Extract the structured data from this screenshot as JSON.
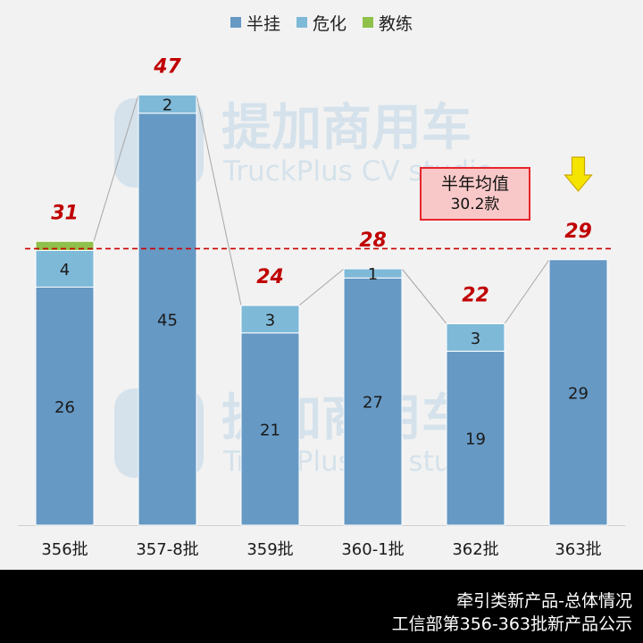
{
  "chart_data": {
    "type": "bar",
    "stacked": true,
    "categories": [
      "356批",
      "357-8批",
      "359批",
      "360-1批",
      "362批",
      "363批"
    ],
    "series": [
      {
        "name": "半挂",
        "color": "#6699c4",
        "values": [
          26,
          45,
          21,
          27,
          19,
          29
        ]
      },
      {
        "name": "危化",
        "color": "#7fb9d8",
        "values": [
          4,
          2,
          3,
          1,
          3,
          0
        ]
      },
      {
        "name": "教练",
        "color": "#8fc04a",
        "values": [
          1,
          0,
          0,
          0,
          0,
          0
        ]
      }
    ],
    "totals": [
      "31",
      "47",
      "24",
      "28",
      "22",
      "29"
    ],
    "average": 30.2,
    "average_label": {
      "line1": "半年均值",
      "line2": "30.2款"
    },
    "ylim": [
      0,
      50
    ],
    "total_label_color": "#c00000",
    "average_line_color": "#cc0000",
    "highlight_arrow": {
      "category_index": 5,
      "color": "#f5e400"
    },
    "legend_position": "top-center",
    "grid": false
  },
  "watermark": {
    "brand": "提加商用车",
    "sub": "TruckPlus CV studio"
  },
  "footer": {
    "line1": "牵引类新产品-总体情况",
    "line2": "工信部第356-363批新产品公示"
  }
}
